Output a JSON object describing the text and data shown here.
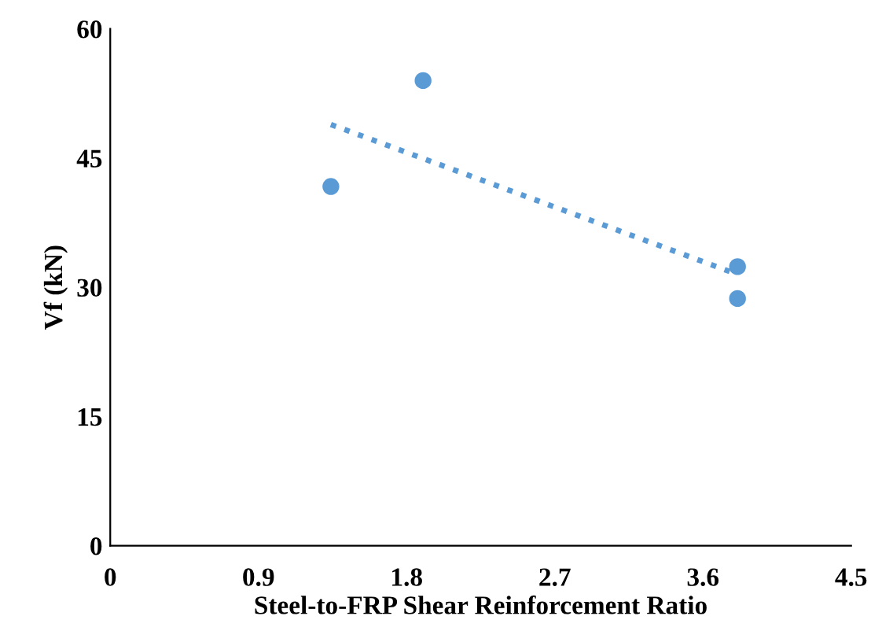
{
  "chart_data": {
    "type": "scatter",
    "xlabel": "Steel-to-FRP Shear Reinforcement Ratio",
    "ylabel": "Vf (kN)",
    "xlim": [
      0,
      4.5
    ],
    "xticks": [
      0,
      0.9,
      1.8,
      2.7,
      3.6,
      4.5
    ],
    "ylim": [
      0,
      60
    ],
    "yticks": [
      0,
      15,
      30,
      45,
      60
    ],
    "grid": false,
    "legend": false,
    "marker": "circle",
    "series": [
      {
        "color": "#5b9bd5",
        "x": [
          1.34,
          1.9,
          3.81,
          3.81
        ],
        "values": [
          41.7,
          54.0,
          32.4,
          28.7
        ]
      },
      {
        "type": "line",
        "color": "#5b9bd5",
        "line_style": "dotted",
        "marker": "none",
        "x": [
          1.34,
          3.81
        ],
        "values": [
          48.9,
          31.5
        ]
      }
    ]
  }
}
